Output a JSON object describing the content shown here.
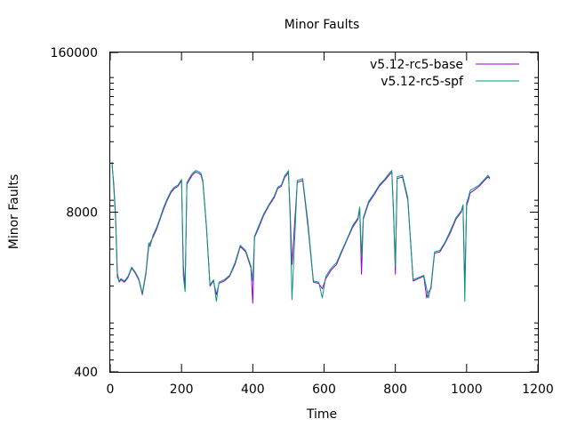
{
  "chart_data": {
    "type": "line",
    "title": "Minor Faults",
    "xlabel": "Time",
    "ylabel": "Minor Faults",
    "xlim": [
      0,
      1200
    ],
    "ylim": [
      400,
      160000
    ],
    "yscale": "log",
    "xticks": [
      0,
      200,
      400,
      600,
      800,
      1000,
      1200
    ],
    "xtick_labels": [
      "0",
      "200",
      "400",
      "600",
      "800",
      "1000",
      "1200"
    ],
    "yticks": [
      400,
      8000,
      160000
    ],
    "ytick_labels": [
      "400",
      "8000",
      "160000"
    ],
    "grid": false,
    "legend_position": "top-right",
    "series": [
      {
        "name": "v5.12-rc5-base",
        "color": "#9400d3",
        "x": [
          5,
          10,
          15,
          20,
          25,
          30,
          40,
          50,
          60,
          70,
          80,
          90,
          100,
          108,
          112,
          120,
          130,
          140,
          150,
          160,
          170,
          180,
          190,
          200,
          205,
          210,
          215,
          230,
          240,
          250,
          255,
          260,
          270,
          280,
          290,
          298,
          305,
          320,
          335,
          350,
          365,
          380,
          395,
          400,
          405,
          415,
          430,
          445,
          460,
          470,
          480,
          490,
          495,
          500,
          505,
          510,
          525,
          540,
          555,
          570,
          585,
          595,
          605,
          620,
          635,
          650,
          665,
          680,
          695,
          700,
          705,
          710,
          725,
          740,
          755,
          770,
          782,
          790,
          795,
          800,
          805,
          820,
          835,
          850,
          865,
          880,
          888,
          893,
          900,
          905,
          910,
          925,
          940,
          955,
          970,
          985,
          990,
          995,
          1000,
          1005,
          1010,
          1020,
          1035,
          1050,
          1060,
          1065
        ],
        "y": [
          19500,
          13500,
          7500,
          2550,
          2150,
          2250,
          2150,
          2350,
          2800,
          2550,
          2250,
          1700,
          2500,
          4200,
          4500,
          5000,
          5800,
          7000,
          8500,
          10000,
          11500,
          12500,
          13000,
          14500,
          3000,
          1900,
          13500,
          16000,
          17000,
          16500,
          16000,
          14000,
          6000,
          2000,
          2200,
          1700,
          2100,
          2200,
          2400,
          3000,
          4200,
          3800,
          2800,
          1450,
          5000,
          5800,
          7500,
          9000,
          10500,
          12500,
          13000,
          15500,
          16000,
          17000,
          8000,
          3000,
          14000,
          14500,
          6000,
          2150,
          2100,
          1900,
          2300,
          2700,
          3000,
          3800,
          4800,
          6000,
          7000,
          8500,
          2500,
          7000,
          9500,
          11000,
          13000,
          14500,
          16000,
          17000,
          8000,
          2500,
          15000,
          15500,
          10000,
          2200,
          2300,
          2400,
          1600,
          1800,
          1900,
          2700,
          3700,
          3800,
          4500,
          5500,
          7000,
          8000,
          9000,
          2000,
          9000,
          10000,
          11500,
          12000,
          13000,
          14500,
          15500,
          15000
        ]
      },
      {
        "name": "v5.12-rc5-spf",
        "color": "#009e73",
        "x": [
          5,
          10,
          15,
          20,
          25,
          30,
          40,
          50,
          60,
          70,
          80,
          90,
          100,
          108,
          112,
          120,
          130,
          140,
          150,
          160,
          170,
          180,
          190,
          200,
          205,
          210,
          215,
          230,
          240,
          250,
          255,
          260,
          270,
          280,
          290,
          298,
          305,
          320,
          335,
          350,
          365,
          380,
          395,
          400,
          405,
          415,
          430,
          445,
          460,
          470,
          480,
          490,
          495,
          500,
          505,
          510,
          525,
          540,
          555,
          570,
          585,
          595,
          605,
          620,
          635,
          650,
          665,
          680,
          695,
          700,
          705,
          710,
          725,
          740,
          755,
          770,
          782,
          790,
          795,
          800,
          805,
          820,
          835,
          850,
          865,
          880,
          888,
          893,
          900,
          905,
          910,
          925,
          940,
          955,
          970,
          985,
          990,
          995,
          1000,
          1005,
          1010,
          1020,
          1035,
          1050,
          1060,
          1065
        ],
        "y": [
          20500,
          12500,
          7000,
          2350,
          2200,
          2300,
          2200,
          2400,
          2850,
          2600,
          2300,
          1750,
          2600,
          4500,
          4200,
          5200,
          6000,
          7200,
          8800,
          10300,
          11800,
          12800,
          13300,
          14800,
          2400,
          1800,
          14000,
          16500,
          17500,
          17000,
          16500,
          14500,
          6200,
          2050,
          2250,
          1500,
          2150,
          2250,
          2450,
          3100,
          4300,
          3900,
          2900,
          2200,
          5100,
          6000,
          7700,
          9200,
          10800,
          12800,
          13300,
          16000,
          16500,
          17500,
          7000,
          1550,
          14500,
          15000,
          6500,
          2200,
          2150,
          1600,
          2400,
          2800,
          3100,
          3900,
          4900,
          6200,
          7200,
          8800,
          3500,
          7200,
          9800,
          11300,
          13300,
          14800,
          16500,
          17500,
          7500,
          2900,
          15500,
          16000,
          10500,
          2250,
          2350,
          2450,
          1900,
          1600,
          2000,
          2800,
          3800,
          3900,
          4600,
          5700,
          7200,
          8200,
          9200,
          1500,
          9500,
          10500,
          12000,
          12500,
          13300,
          14800,
          16000,
          15200
        ]
      }
    ]
  }
}
